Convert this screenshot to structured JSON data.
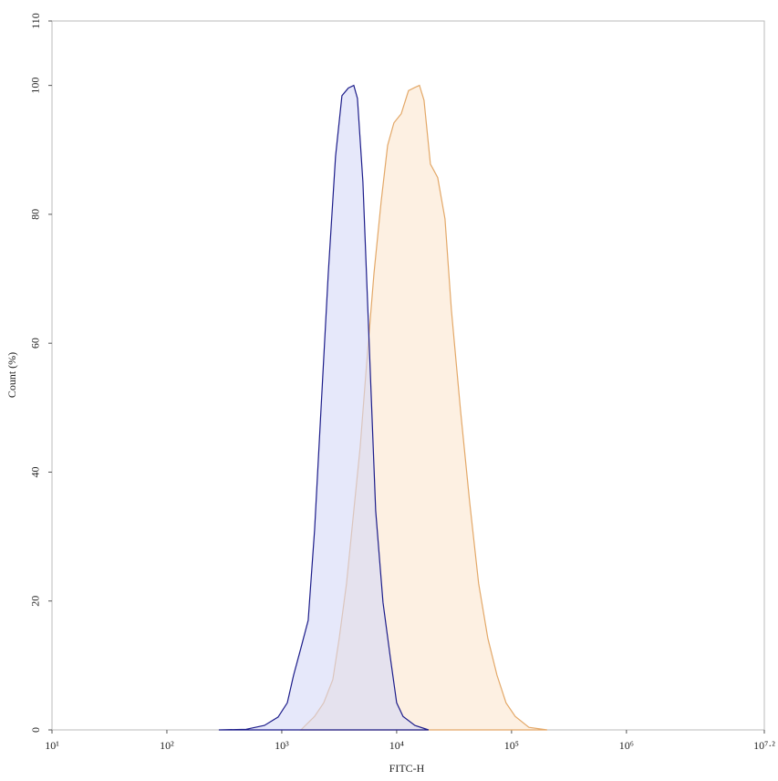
{
  "chart_data": {
    "type": "area",
    "x_label": "FITC-H",
    "y_label": "Count (%)",
    "xscale": "log",
    "xlim": [
      10,
      15848932
    ],
    "xticks": [
      {
        "value": 10,
        "label": "10¹"
      },
      {
        "value": 100,
        "label": "10²"
      },
      {
        "value": 1000,
        "label": "10³"
      },
      {
        "value": 10000,
        "label": "10⁴"
      },
      {
        "value": 100000,
        "label": "10⁵"
      },
      {
        "value": 1000000,
        "label": "10⁶"
      },
      {
        "value": 15848932,
        "label": "10⁷·²"
      }
    ],
    "ylim": [
      0,
      110
    ],
    "yticks": [
      0,
      20,
      40,
      60,
      80,
      100,
      110
    ],
    "series": [
      {
        "color": "#e3a868",
        "fill": "#fbe6cf",
        "x": [
          1468,
          1931,
          2317,
          2780,
          3162,
          3656,
          4235,
          4815,
          5470,
          6339,
          7330,
          8337,
          9461,
          10960,
          12680,
          14420,
          15790,
          17300,
          19680,
          22750,
          26350,
          29930,
          35970,
          43150,
          51760,
          62230,
          74650,
          89540,
          107600,
          141600,
          204200
        ],
        "values": [
          0,
          2.1,
          4.2,
          7.8,
          14.2,
          22.7,
          34,
          43.9,
          56.7,
          70.8,
          82,
          90.7,
          94.2,
          95.6,
          99.2,
          99.7,
          100,
          97.7,
          87.8,
          85.7,
          79.3,
          65.2,
          49.6,
          35.4,
          22.7,
          14.2,
          8.5,
          4.2,
          2.1,
          0.4,
          0
        ]
      },
      {
        "color": "#1c1c8a",
        "fill": "#d6d8f7",
        "x": [
          283,
          490,
          706,
          929,
          1117,
          1268,
          1468,
          1698,
          1931,
          2195,
          2540,
          2938,
          3340,
          3796,
          4235,
          4560,
          5085,
          5781,
          6568,
          7603,
          8799,
          10000,
          11370,
          14420,
          18970
        ],
        "values": [
          0,
          0.1,
          0.7,
          2,
          4.2,
          8.5,
          12.7,
          17,
          31,
          49.6,
          70.8,
          89,
          98.4,
          99.6,
          100,
          98,
          85,
          59.5,
          34,
          19.8,
          11.3,
          4.2,
          2.1,
          0.7,
          0
        ]
      }
    ]
  }
}
